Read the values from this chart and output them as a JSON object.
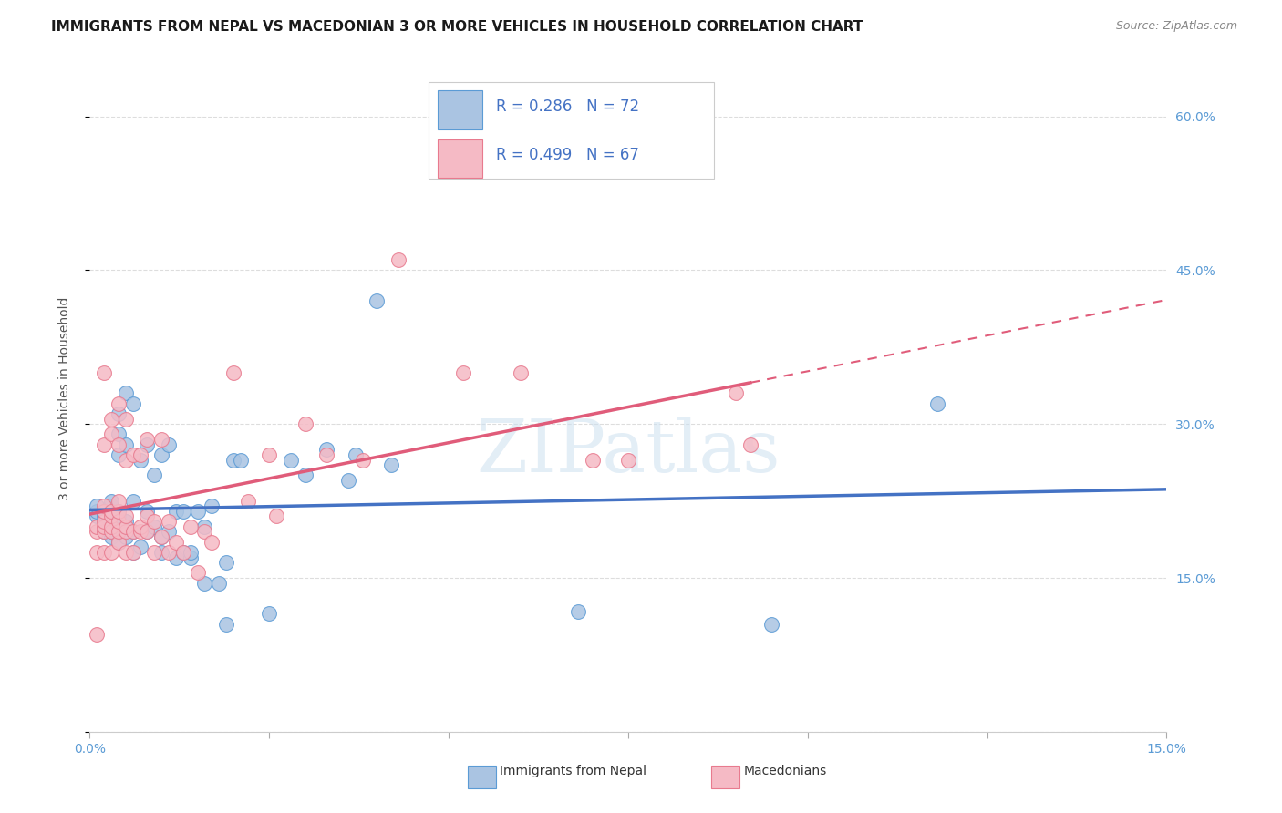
{
  "title": "IMMIGRANTS FROM NEPAL VS MACEDONIAN 3 OR MORE VEHICLES IN HOUSEHOLD CORRELATION CHART",
  "source": "Source: ZipAtlas.com",
  "ylabel_text": "3 or more Vehicles in Household",
  "x_min": 0.0,
  "x_max": 0.15,
  "y_min": 0.0,
  "y_max": 0.65,
  "x_ticks": [
    0.0,
    0.025,
    0.05,
    0.075,
    0.1,
    0.125,
    0.15
  ],
  "x_tick_labels_left": "0.0%",
  "x_tick_labels_right": "15.0%",
  "y_ticks": [
    0.0,
    0.15,
    0.3,
    0.45,
    0.6
  ],
  "y_tick_labels": [
    "",
    "15.0%",
    "30.0%",
    "45.0%",
    "60.0%"
  ],
  "nepal_color": "#aac4e2",
  "nepal_edge_color": "#5b9bd5",
  "macedonian_color": "#f5bac5",
  "macedonian_edge_color": "#e87a8e",
  "regression_nepal_color": "#4472c4",
  "regression_macedonian_color": "#e05c7a",
  "R_nepal": 0.286,
  "N_nepal": 72,
  "R_macedonian": 0.499,
  "N_macedonian": 67,
  "nepal_x": [
    0.001,
    0.001,
    0.001,
    0.002,
    0.002,
    0.002,
    0.002,
    0.002,
    0.002,
    0.003,
    0.003,
    0.003,
    0.003,
    0.003,
    0.003,
    0.003,
    0.003,
    0.004,
    0.004,
    0.004,
    0.004,
    0.004,
    0.004,
    0.004,
    0.004,
    0.005,
    0.005,
    0.005,
    0.005,
    0.005,
    0.006,
    0.006,
    0.006,
    0.006,
    0.007,
    0.007,
    0.008,
    0.008,
    0.008,
    0.009,
    0.009,
    0.01,
    0.01,
    0.01,
    0.011,
    0.011,
    0.012,
    0.012,
    0.013,
    0.013,
    0.014,
    0.014,
    0.015,
    0.016,
    0.016,
    0.017,
    0.018,
    0.019,
    0.019,
    0.02,
    0.021,
    0.025,
    0.028,
    0.03,
    0.033,
    0.036,
    0.037,
    0.04,
    0.042,
    0.068,
    0.095,
    0.118
  ],
  "nepal_y": [
    0.21,
    0.215,
    0.22,
    0.195,
    0.2,
    0.2,
    0.205,
    0.21,
    0.215,
    0.19,
    0.195,
    0.2,
    0.205,
    0.21,
    0.215,
    0.22,
    0.225,
    0.185,
    0.195,
    0.2,
    0.21,
    0.215,
    0.27,
    0.29,
    0.31,
    0.19,
    0.2,
    0.205,
    0.28,
    0.33,
    0.175,
    0.195,
    0.225,
    0.32,
    0.18,
    0.265,
    0.195,
    0.215,
    0.28,
    0.2,
    0.25,
    0.175,
    0.19,
    0.27,
    0.195,
    0.28,
    0.17,
    0.215,
    0.175,
    0.215,
    0.17,
    0.175,
    0.215,
    0.145,
    0.2,
    0.22,
    0.145,
    0.165,
    0.105,
    0.265,
    0.265,
    0.115,
    0.265,
    0.25,
    0.275,
    0.245,
    0.27,
    0.42,
    0.26,
    0.117,
    0.105,
    0.32
  ],
  "macedonian_x": [
    0.001,
    0.001,
    0.001,
    0.001,
    0.002,
    0.002,
    0.002,
    0.002,
    0.002,
    0.002,
    0.002,
    0.002,
    0.003,
    0.003,
    0.003,
    0.003,
    0.003,
    0.003,
    0.003,
    0.004,
    0.004,
    0.004,
    0.004,
    0.004,
    0.004,
    0.004,
    0.005,
    0.005,
    0.005,
    0.005,
    0.005,
    0.005,
    0.006,
    0.006,
    0.006,
    0.007,
    0.007,
    0.007,
    0.008,
    0.008,
    0.008,
    0.009,
    0.009,
    0.01,
    0.01,
    0.011,
    0.011,
    0.012,
    0.013,
    0.014,
    0.015,
    0.016,
    0.017,
    0.02,
    0.022,
    0.025,
    0.026,
    0.03,
    0.033,
    0.038,
    0.043,
    0.052,
    0.06,
    0.07,
    0.075,
    0.09,
    0.092
  ],
  "macedonian_y": [
    0.175,
    0.195,
    0.2,
    0.095,
    0.175,
    0.195,
    0.2,
    0.205,
    0.215,
    0.22,
    0.28,
    0.35,
    0.175,
    0.195,
    0.2,
    0.21,
    0.215,
    0.29,
    0.305,
    0.185,
    0.195,
    0.205,
    0.215,
    0.225,
    0.28,
    0.32,
    0.175,
    0.195,
    0.2,
    0.21,
    0.265,
    0.305,
    0.175,
    0.195,
    0.27,
    0.195,
    0.2,
    0.27,
    0.195,
    0.21,
    0.285,
    0.175,
    0.205,
    0.19,
    0.285,
    0.175,
    0.205,
    0.185,
    0.175,
    0.2,
    0.155,
    0.195,
    0.185,
    0.35,
    0.225,
    0.27,
    0.21,
    0.3,
    0.27,
    0.265,
    0.46,
    0.35,
    0.35,
    0.265,
    0.265,
    0.33,
    0.28
  ],
  "watermark": "ZIPatlas",
  "background_color": "#ffffff",
  "grid_color": "#dddddd",
  "title_fontsize": 11,
  "axis_label_fontsize": 10,
  "tick_fontsize": 10,
  "legend_fontsize": 12
}
